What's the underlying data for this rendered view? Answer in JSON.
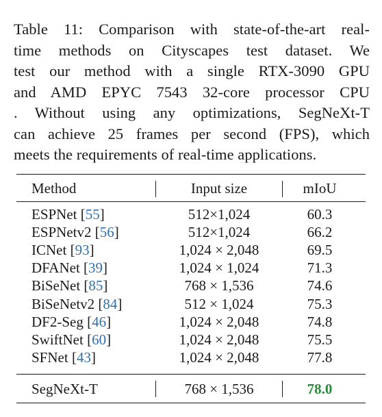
{
  "caption": {
    "lines": [
      "Table 11:  Comparison with state-of-the-art real-",
      "time methods on Cityscapes test dataset.  We",
      "test our method with a single RTX-3090 GPU",
      "and AMD EPYC 7543 32-core processor CPU",
      ". Without using any optimizations, SegNeXt-T",
      "can achieve 25 frames per second (FPS), which",
      "meets the requirements of real-time applications."
    ]
  },
  "table": {
    "headers": {
      "method": "Method",
      "input": "Input size",
      "miou": "mIoU"
    },
    "rows": [
      {
        "method": "ESPNet",
        "cite": "55",
        "input": "512×1,024",
        "miou": "60.3"
      },
      {
        "method": "ESPNetv2",
        "cite": "56",
        "input": "512×1,024",
        "miou": "66.2"
      },
      {
        "method": "ICNet",
        "cite": "93",
        "input": "1,024 × 2,048",
        "miou": "69.5"
      },
      {
        "method": "DFANet",
        "cite": "39",
        "input": "1,024 × 1,024",
        "miou": "71.3"
      },
      {
        "method": "BiSeNet",
        "cite": "85",
        "input": "768 × 1,536",
        "miou": "74.6"
      },
      {
        "method": "BiSeNetv2",
        "cite": "84",
        "input": "512 × 1,024",
        "miou": "75.3"
      },
      {
        "method": "DF2-Seg",
        "cite": "46",
        "input": "1,024 × 2,048",
        "miou": "74.8"
      },
      {
        "method": "SwiftNet",
        "cite": "60",
        "input": "1,024 × 2,048",
        "miou": "75.5"
      },
      {
        "method": "SFNet",
        "cite": "43",
        "input": "1,024 × 2,048",
        "miou": "77.8"
      }
    ],
    "ours": {
      "method": "SegNeXt-T",
      "input": "768 × 1,536",
      "miou": "78.0"
    }
  },
  "colors": {
    "citation": "#2f6fb0",
    "best": "#2a8a3a"
  }
}
